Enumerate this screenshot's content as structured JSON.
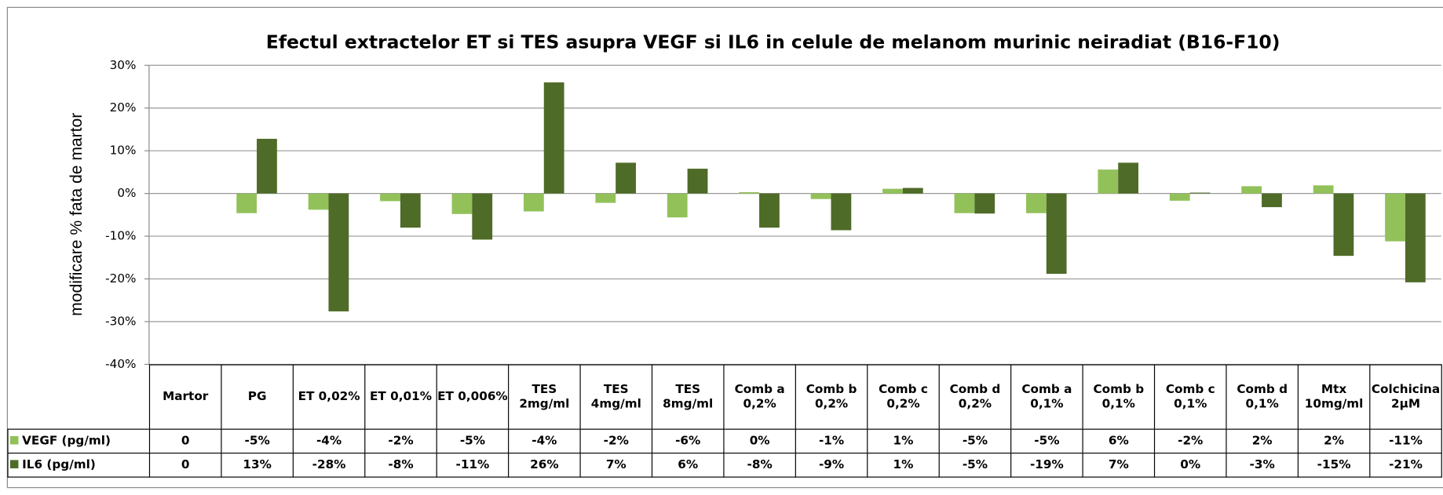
{
  "chart_data": {
    "type": "bar",
    "title": "Efectul extractelor ET si TES asupra VEGF si IL6 in celule de melanom murinic neiradiat (B16-F10)",
    "y_label": "modificare % fata de martor",
    "categories": [
      "Martor",
      "PG",
      "ET 0,02%",
      "ET 0,01%",
      "ET 0,006%",
      "TES 2mg/ml",
      "TES 4mg/ml",
      "TES 8mg/ml",
      "Comb a 0,2%",
      "Comb b 0,2%",
      "Comb c 0,2%",
      "Comb d 0,2%",
      "Comb a 0,1%",
      "Comb b 0,1%",
      "Comb c 0,1%",
      "Comb d 0,1%",
      "Mtx 10mg/ml",
      "Colchicina 2µM"
    ],
    "series": [
      {
        "name": "VEGF (pg/ml)",
        "color": "#92c15a",
        "values": [
          0,
          -4.6,
          -3.8,
          -1.8,
          -4.8,
          -4.2,
          -2.2,
          -5.6,
          0.3,
          -1.3,
          1.1,
          -4.6,
          -4.6,
          5.6,
          -1.7,
          1.7,
          1.9,
          -11.2
        ],
        "value_labels": [
          "0",
          "-5%",
          "-4%",
          "-2%",
          "-5%",
          "-4%",
          "-2%",
          "-6%",
          "0%",
          "-1%",
          "1%",
          "-5%",
          "-5%",
          "6%",
          "-2%",
          "2%",
          "2%",
          "-11%"
        ]
      },
      {
        "name": "IL6 (pg/ml)",
        "color": "#4f6b28",
        "values": [
          0,
          12.8,
          -27.6,
          -8,
          -10.8,
          26,
          7.2,
          5.8,
          -8,
          -8.6,
          1.3,
          -4.7,
          -18.8,
          7.2,
          0.2,
          -3.2,
          -14.6,
          -20.8
        ],
        "value_labels": [
          "0",
          "13%",
          "-28%",
          "-8%",
          "-11%",
          "26%",
          "7%",
          "6%",
          "-8%",
          "-9%",
          "1%",
          "-5%",
          "-19%",
          "7%",
          "0%",
          "-3%",
          "-15%",
          "-21%"
        ]
      }
    ],
    "ylim": [
      -40,
      30
    ],
    "yticks": [
      {
        "value": -40,
        "label": "-40%"
      },
      {
        "value": -30,
        "label": "-30%"
      },
      {
        "value": -20,
        "label": "-20%"
      },
      {
        "value": -10,
        "label": "-10%"
      },
      {
        "value": 0,
        "label": "0%"
      },
      {
        "value": 10,
        "label": "10%"
      },
      {
        "value": 20,
        "label": "20%"
      },
      {
        "value": 30,
        "label": "30%"
      }
    ],
    "grid": true
  }
}
